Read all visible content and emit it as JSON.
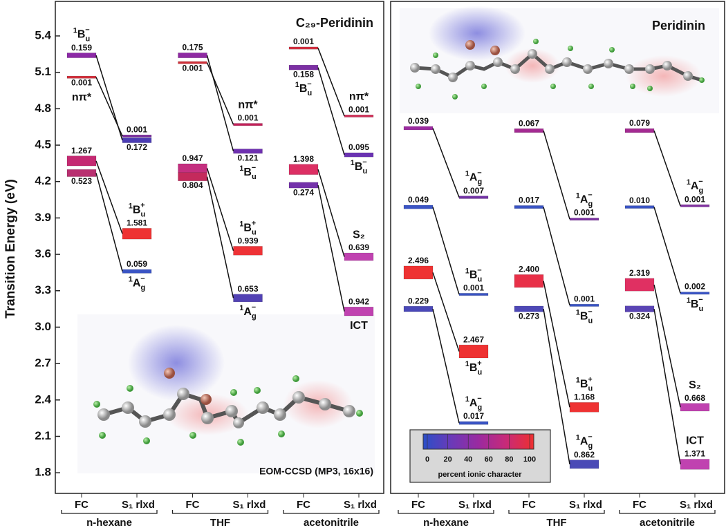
{
  "chart_data": {
    "type": "energy-levels",
    "y_label": "Transition Energy (eV)",
    "ylim": [
      1.64,
      5.67
    ],
    "yticks": [
      5.4,
      5.1,
      4.8,
      4.5,
      4.2,
      3.9,
      3.6,
      3.3,
      {
        "value": 3,
        "label": "3.0"
      },
      2.7,
      2.4,
      2.1,
      1.8
    ],
    "columns": [
      "FC",
      "S₁ rlxd"
    ],
    "annotation": "EOM-CCSD (MP3, 16x16)",
    "colorbar": {
      "label": "percent ionic character",
      "lim": [
        0,
        100
      ],
      "ticks": [
        0,
        20,
        40,
        60,
        80,
        100
      ],
      "colors": [
        "#2a4fc8",
        "#6a3ab8",
        "#9a2aa0",
        "#c82a78",
        "#ee3030"
      ]
    },
    "panels": [
      {
        "title": "C₂₉-Peridinin",
        "groups": [
          {
            "solvent": "n-hexane",
            "states": [
              {
                "fc": {
                  "energy": 5.24,
                  "f": 0.159,
                  "color": "#8c2aa6",
                  "name": {
                    "pre": "1",
                    "base": "B",
                    "sub": "u",
                    "sup": "−"
                  }
                },
                "rlxd": {
                  "energy": 4.54,
                  "f": 0.172,
                  "color": "#4b3cb4"
                }
              },
              {
                "fc": {
                  "energy": 5.06,
                  "f": 0.001,
                  "color": "#d2303c",
                  "name": "nπ*"
                },
                "rlxd": {
                  "energy": 4.575,
                  "f": 0.001,
                  "color": "#7a2c9c"
                }
              },
              {
                "fc": {
                  "energy": 4.37,
                  "f": 1.267,
                  "color": "#c42a72"
                },
                "rlxd": {
                  "energy": 3.77,
                  "f": 1.581,
                  "color": "#ee3232",
                  "name": {
                    "pre": "1",
                    "base": "B",
                    "sub": "u",
                    "sup": "+"
                  }
                }
              },
              {
                "fc": {
                  "energy": 4.27,
                  "f": 0.523,
                  "color": "#b83070"
                },
                "rlxd": {
                  "energy": 3.46,
                  "f": 0.059,
                  "color": "#3a54c4",
                  "name": {
                    "pre": "1",
                    "base": "A",
                    "sub": "g",
                    "sup": "−"
                  }
                }
              }
            ]
          },
          {
            "solvent": "THF",
            "states": [
              {
                "fc": {
                  "energy": 5.24,
                  "f": 0.175,
                  "color": "#8e2aa2"
                },
                "rlxd": {
                  "energy": 4.45,
                  "f": 0.121,
                  "color": "#6e30b0",
                  "name": {
                    "pre": "1",
                    "base": "B",
                    "sub": "u",
                    "sup": "−"
                  }
                }
              },
              {
                "fc": {
                  "energy": 5.18,
                  "f": 0.001,
                  "color": "#d0303a"
                },
                "rlxd": {
                  "energy": 4.67,
                  "f": 0.001,
                  "color": "#c4205a",
                  "name": "nπ*"
                }
              },
              {
                "fc": {
                  "energy": 4.31,
                  "f": 0.947,
                  "color": "#c43080"
                },
                "rlxd": {
                  "energy": 3.63,
                  "f": 0.939,
                  "color": "#ee3236",
                  "name": {
                    "pre": "1",
                    "base": "B",
                    "sub": "u",
                    "sup": "+"
                  }
                }
              },
              {
                "fc": {
                  "energy": 4.24,
                  "f": 0.804,
                  "color": "#c42a5c"
                },
                "rlxd": {
                  "energy": 3.24,
                  "f": 0.653,
                  "color": "#5242b4",
                  "name": {
                    "pre": "1",
                    "base": "A",
                    "sub": "g",
                    "sup": "−"
                  }
                }
              }
            ]
          },
          {
            "solvent": "acetonitrile",
            "states": [
              {
                "fc": {
                  "energy": 5.3,
                  "f": 0.001,
                  "color": "#d23040"
                },
                "rlxd": {
                  "energy": 4.74,
                  "f": 0.001,
                  "color": "#d03058",
                  "name": "nπ*"
                }
              },
              {
                "fc": {
                  "energy": 5.14,
                  "f": 0.158,
                  "color": "#7c30a4",
                  "name": {
                    "pre": "1",
                    "base": "B",
                    "sub": "u",
                    "sup": "−"
                  }
                },
                "rlxd": {
                  "energy": 4.42,
                  "f": 0.095,
                  "color": "#6a32b2",
                  "name": {
                    "pre": "1",
                    "base": "B",
                    "sub": "u",
                    "sup": "−"
                  }
                }
              },
              {
                "fc": {
                  "energy": 4.3,
                  "f": 1.398,
                  "color": "#dc3064"
                },
                "rlxd": {
                  "energy": 3.58,
                  "f": 0.639,
                  "color": "#c042b0",
                  "name": "S₂"
                }
              },
              {
                "fc": {
                  "energy": 4.17,
                  "f": 0.274,
                  "color": "#7432aa"
                },
                "rlxd": {
                  "energy": 3.13,
                  "f": 0.942,
                  "color": "#c042b0",
                  "name": "ICT"
                }
              }
            ]
          }
        ]
      },
      {
        "title": "Peridinin",
        "groups": [
          {
            "solvent": "n-hexane",
            "states": [
              {
                "fc": {
                  "energy": 4.64,
                  "f": 0.039,
                  "color": "#9c2aa0"
                },
                "rlxd": {
                  "energy": 4.07,
                  "f": 0.007,
                  "color": "#7232a4",
                  "name": {
                    "pre": "1",
                    "base": "A",
                    "sub": "g",
                    "sup": "−"
                  }
                }
              },
              {
                "fc": {
                  "energy": 3.99,
                  "f": 0.049,
                  "color": "#3a54c4"
                },
                "rlxd": {
                  "energy": 3.27,
                  "f": 0.001,
                  "color": "#3a54c4",
                  "name": {
                    "pre": "1",
                    "base": "B",
                    "sub": "u",
                    "sup": "−"
                  }
                }
              },
              {
                "fc": {
                  "energy": 3.45,
                  "f": 2.496,
                  "color": "#ee3232"
                },
                "rlxd": {
                  "energy": 2.8,
                  "f": 2.467,
                  "color": "#ee3232",
                  "name": {
                    "pre": "1",
                    "base": "B",
                    "sub": "u",
                    "sup": "+"
                  }
                }
              },
              {
                "fc": {
                  "energy": 3.15,
                  "f": 0.229,
                  "color": "#4a48b8"
                },
                "rlxd": {
                  "energy": 2.21,
                  "f": 0.017,
                  "color": "#3a54c4",
                  "name": {
                    "pre": "1",
                    "base": "A",
                    "sub": "g",
                    "sup": "−"
                  }
                }
              }
            ]
          },
          {
            "solvent": "THF",
            "states": [
              {
                "fc": {
                  "energy": 4.62,
                  "f": 0.067,
                  "color": "#a42a92"
                },
                "rlxd": {
                  "energy": 3.89,
                  "f": 0.001,
                  "color": "#7a30a0",
                  "name": {
                    "pre": "1",
                    "base": "A",
                    "sub": "g",
                    "sup": "−"
                  }
                }
              },
              {
                "fc": {
                  "energy": 3.99,
                  "f": 0.017,
                  "color": "#3a54c4"
                },
                "rlxd": {
                  "energy": 3.18,
                  "f": 0.001,
                  "color": "#3a54c4",
                  "name": {
                    "pre": "1",
                    "base": "B",
                    "sub": "u",
                    "sup": "−"
                  }
                }
              },
              {
                "fc": {
                  "energy": 3.38,
                  "f": {
                    "value": 2.4,
                    "label": "2.400"
                  },
                  "color": "#e83048"
                },
                "rlxd": {
                  "energy": 2.34,
                  "f": 1.168,
                  "color": "#ee3232",
                  "name": {
                    "pre": "1",
                    "base": "B",
                    "sub": "u",
                    "sup": "+"
                  }
                }
              },
              {
                "fc": {
                  "energy": 3.15,
                  "f": 0.273,
                  "color": "#4e48b6"
                },
                "rlxd": {
                  "energy": 1.87,
                  "f": 0.862,
                  "color": "#4a4ab6",
                  "name": {
                    "pre": "1",
                    "base": "A",
                    "sub": "g",
                    "sup": "−"
                  }
                }
              }
            ]
          },
          {
            "solvent": "acetonitrile",
            "states": [
              {
                "fc": {
                  "energy": 4.62,
                  "f": 0.079,
                  "color": "#a42a92"
                },
                "rlxd": {
                  "energy": 4.0,
                  "f": 0.001,
                  "color": "#8030a0",
                  "name": {
                    "pre": "1",
                    "base": "A",
                    "sub": "g",
                    "sup": "−"
                  }
                }
              },
              {
                "fc": {
                  "energy": 3.99,
                  "f": {
                    "value": 0.01,
                    "label": "0.010"
                  },
                  "color": "#3a54c4"
                },
                "rlxd": {
                  "energy": 3.28,
                  "f": 0.002,
                  "color": "#3a54c4",
                  "name": {
                    "pre": "1",
                    "base": "B",
                    "sub": "u",
                    "sup": "−"
                  }
                }
              },
              {
                "fc": {
                  "energy": 3.35,
                  "f": 2.319,
                  "color": "#e03062"
                },
                "rlxd": {
                  "energy": 2.34,
                  "f": 0.668,
                  "color": "#c042b0",
                  "name": "S₂"
                }
              },
              {
                "fc": {
                  "energy": 3.15,
                  "f": 0.324,
                  "color": "#5a44b4"
                },
                "rlxd": {
                  "energy": 1.87,
                  "f": 1.371,
                  "color": "#c042b0",
                  "name": "ICT"
                }
              }
            ]
          }
        ]
      }
    ]
  }
}
